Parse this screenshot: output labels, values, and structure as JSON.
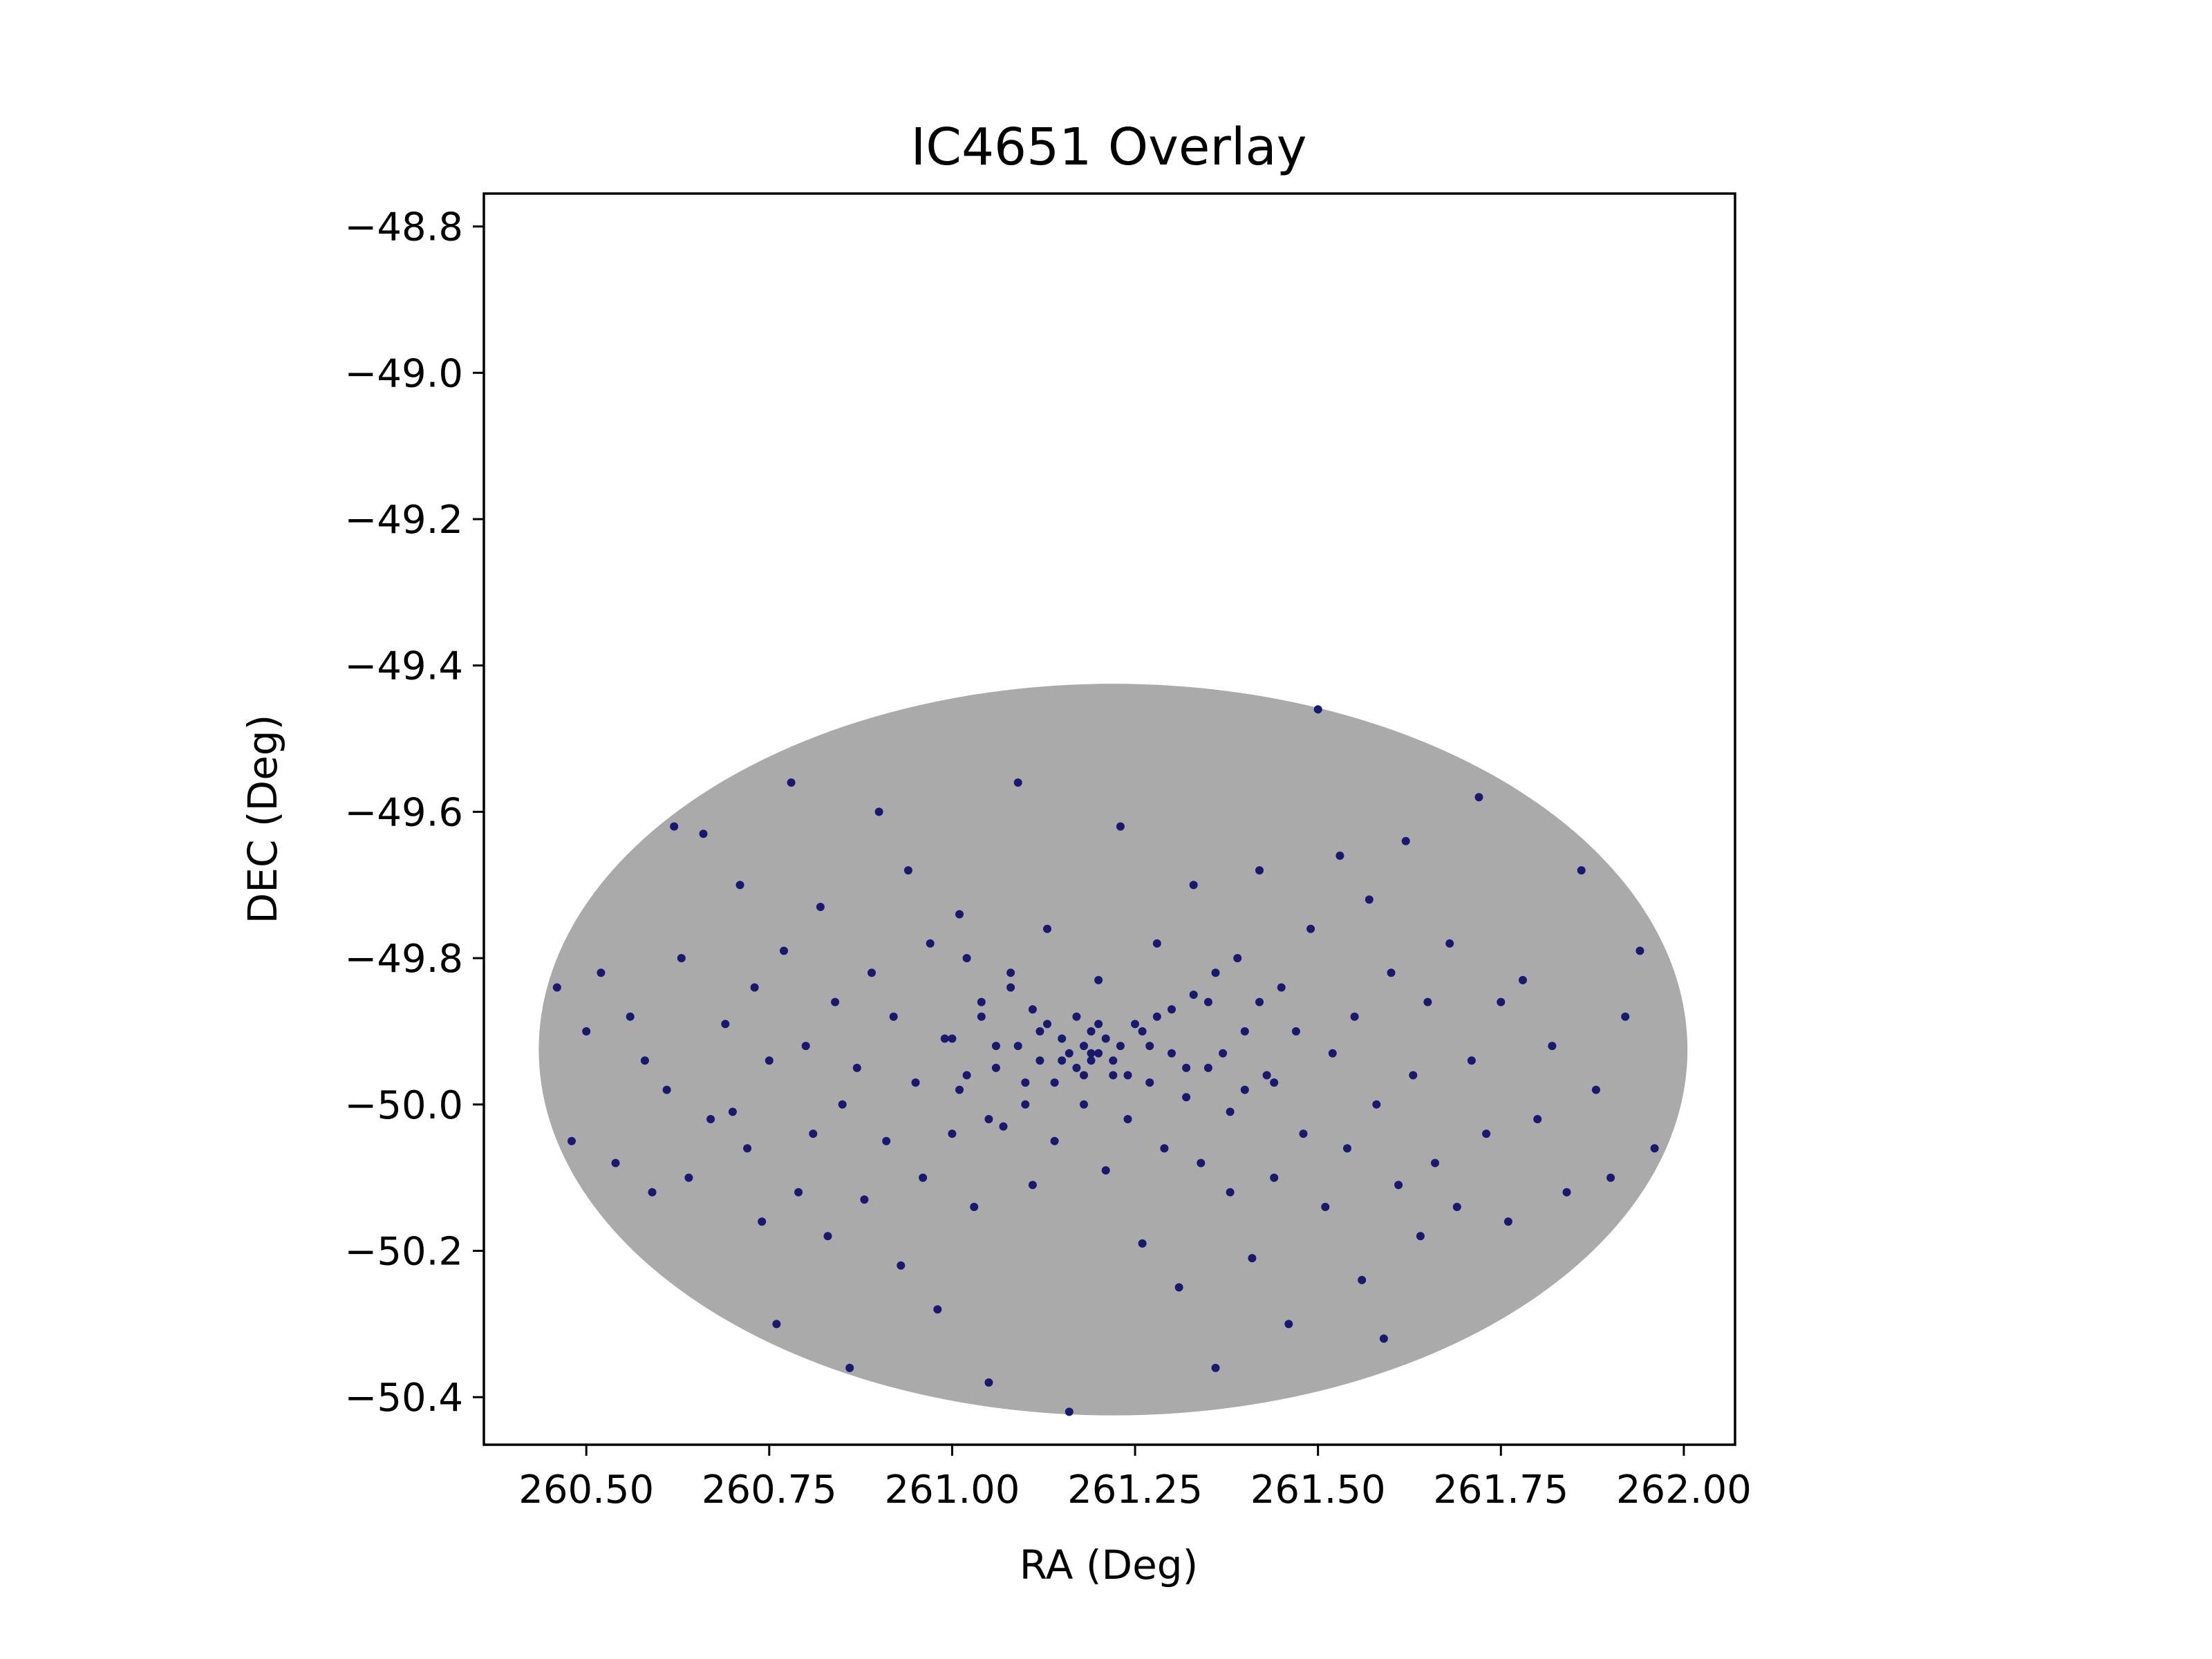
{
  "chart_data": {
    "type": "scatter",
    "title": "IC4651 Overlay",
    "xlabel": "RA (Deg)",
    "ylabel": "DEC (Deg)",
    "xlim": [
      260.36,
      262.07
    ],
    "ylim": [
      -50.465,
      -48.755
    ],
    "xticks": [
      {
        "value": 260.5,
        "label": "260.50"
      },
      {
        "value": 260.75,
        "label": "260.75"
      },
      {
        "value": 261.0,
        "label": "261.00"
      },
      {
        "value": 261.25,
        "label": "261.25"
      },
      {
        "value": 261.5,
        "label": "261.50"
      },
      {
        "value": 261.75,
        "label": "261.75"
      },
      {
        "value": 262.0,
        "label": "262.00"
      }
    ],
    "yticks": [
      {
        "value": -48.8,
        "label": "−48.8"
      },
      {
        "value": -49.0,
        "label": "−49.0"
      },
      {
        "value": -49.2,
        "label": "−49.2"
      },
      {
        "value": -49.4,
        "label": "−49.4"
      },
      {
        "value": -49.6,
        "label": "−49.6"
      },
      {
        "value": -49.8,
        "label": "−49.8"
      },
      {
        "value": -50.0,
        "label": "−50.0"
      },
      {
        "value": -50.2,
        "label": "−50.2"
      },
      {
        "value": -50.4,
        "label": "−50.4"
      }
    ],
    "grid": false,
    "legend": "none",
    "field": {
      "description": "gray elliptical region of sampled positions",
      "center_ra": 261.22,
      "center_dec": -49.925,
      "half_width_ra": 0.785,
      "half_height_dec": 0.5,
      "color": "#aaaaaa"
    },
    "series": [
      {
        "color": "#191970",
        "points": [
          [
            260.46,
            -49.84
          ],
          [
            260.48,
            -50.05
          ],
          [
            260.5,
            -49.9
          ],
          [
            260.52,
            -49.82
          ],
          [
            260.54,
            -50.08
          ],
          [
            260.56,
            -49.88
          ],
          [
            260.58,
            -49.94
          ],
          [
            260.59,
            -50.12
          ],
          [
            260.61,
            -49.98
          ],
          [
            260.62,
            -49.62
          ],
          [
            260.63,
            -49.8
          ],
          [
            260.64,
            -50.1
          ],
          [
            260.66,
            -49.63
          ],
          [
            260.67,
            -50.02
          ],
          [
            260.69,
            -49.89
          ],
          [
            260.7,
            -50.01
          ],
          [
            260.71,
            -49.7
          ],
          [
            260.72,
            -50.06
          ],
          [
            260.73,
            -49.84
          ],
          [
            260.74,
            -50.16
          ],
          [
            260.75,
            -49.94
          ],
          [
            260.76,
            -50.3
          ],
          [
            260.77,
            -49.79
          ],
          [
            260.78,
            -49.56
          ],
          [
            260.79,
            -50.12
          ],
          [
            260.8,
            -49.92
          ],
          [
            260.81,
            -50.04
          ],
          [
            260.82,
            -49.73
          ],
          [
            260.83,
            -50.18
          ],
          [
            260.84,
            -49.86
          ],
          [
            260.85,
            -50.0
          ],
          [
            260.86,
            -50.36
          ],
          [
            260.87,
            -49.95
          ],
          [
            260.88,
            -50.13
          ],
          [
            260.89,
            -49.82
          ],
          [
            260.9,
            -49.6
          ],
          [
            260.91,
            -50.05
          ],
          [
            260.92,
            -49.88
          ],
          [
            260.93,
            -50.22
          ],
          [
            260.94,
            -49.68
          ],
          [
            260.95,
            -49.97
          ],
          [
            260.96,
            -50.1
          ],
          [
            260.97,
            -49.78
          ],
          [
            260.98,
            -50.28
          ],
          [
            260.99,
            -49.91
          ],
          [
            261.0,
            -50.04
          ],
          [
            261.01,
            -49.74
          ],
          [
            261.02,
            -49.96
          ],
          [
            261.03,
            -50.14
          ],
          [
            261.04,
            -49.86
          ],
          [
            261.05,
            -50.38
          ],
          [
            261.06,
            -49.92
          ],
          [
            261.07,
            -50.03
          ],
          [
            261.08,
            -49.82
          ],
          [
            261.09,
            -49.56
          ],
          [
            261.1,
            -49.97
          ],
          [
            261.11,
            -50.11
          ],
          [
            261.12,
            -49.9
          ],
          [
            261.13,
            -49.76
          ],
          [
            261.14,
            -50.05
          ],
          [
            261.15,
            -49.94
          ],
          [
            261.16,
            -50.42
          ],
          [
            261.17,
            -49.88
          ],
          [
            261.18,
            -50.0
          ],
          [
            261.19,
            -49.93
          ],
          [
            261.2,
            -49.83
          ],
          [
            261.21,
            -50.09
          ],
          [
            261.22,
            -49.96
          ],
          [
            261.23,
            -49.62
          ],
          [
            261.24,
            -50.02
          ],
          [
            261.25,
            -49.89
          ],
          [
            261.26,
            -50.19
          ],
          [
            261.27,
            -49.92
          ],
          [
            261.28,
            -49.78
          ],
          [
            261.29,
            -50.06
          ],
          [
            261.3,
            -49.87
          ],
          [
            261.31,
            -50.25
          ],
          [
            261.32,
            -49.95
          ],
          [
            261.33,
            -49.7
          ],
          [
            261.34,
            -50.08
          ],
          [
            261.35,
            -49.86
          ],
          [
            261.36,
            -50.36
          ],
          [
            261.37,
            -49.93
          ],
          [
            261.38,
            -50.12
          ],
          [
            261.39,
            -49.8
          ],
          [
            261.4,
            -49.98
          ],
          [
            261.41,
            -50.21
          ],
          [
            261.42,
            -49.68
          ],
          [
            261.43,
            -49.96
          ],
          [
            261.44,
            -50.1
          ],
          [
            261.45,
            -49.84
          ],
          [
            261.46,
            -50.3
          ],
          [
            261.47,
            -49.9
          ],
          [
            261.48,
            -50.04
          ],
          [
            261.49,
            -49.76
          ],
          [
            261.5,
            -49.46
          ],
          [
            261.51,
            -50.14
          ],
          [
            261.52,
            -49.93
          ],
          [
            261.53,
            -49.66
          ],
          [
            261.54,
            -50.06
          ],
          [
            261.55,
            -49.88
          ],
          [
            261.56,
            -50.24
          ],
          [
            261.57,
            -49.72
          ],
          [
            261.58,
            -50.0
          ],
          [
            261.59,
            -50.32
          ],
          [
            261.6,
            -49.82
          ],
          [
            261.61,
            -50.11
          ],
          [
            261.62,
            -49.64
          ],
          [
            261.63,
            -49.96
          ],
          [
            261.64,
            -50.18
          ],
          [
            261.65,
            -49.86
          ],
          [
            261.66,
            -50.08
          ],
          [
            261.68,
            -49.78
          ],
          [
            261.69,
            -50.14
          ],
          [
            261.71,
            -49.94
          ],
          [
            261.72,
            -49.58
          ],
          [
            261.73,
            -50.04
          ],
          [
            261.75,
            -49.86
          ],
          [
            261.76,
            -50.16
          ],
          [
            261.78,
            -49.83
          ],
          [
            261.8,
            -50.02
          ],
          [
            261.82,
            -49.92
          ],
          [
            261.84,
            -50.12
          ],
          [
            261.86,
            -49.68
          ],
          [
            261.88,
            -49.98
          ],
          [
            261.9,
            -50.1
          ],
          [
            261.92,
            -49.88
          ],
          [
            261.94,
            -49.79
          ],
          [
            261.96,
            -50.06
          ],
          [
            261.18,
            -49.92
          ],
          [
            261.19,
            -49.94
          ],
          [
            261.2,
            -49.93
          ],
          [
            261.17,
            -49.95
          ],
          [
            261.21,
            -49.91
          ],
          [
            261.16,
            -49.93
          ],
          [
            261.22,
            -49.94
          ],
          [
            261.19,
            -49.9
          ],
          [
            261.18,
            -49.96
          ],
          [
            261.2,
            -49.89
          ],
          [
            261.15,
            -49.91
          ],
          [
            261.23,
            -49.92
          ],
          [
            261.14,
            -49.97
          ],
          [
            261.24,
            -49.96
          ],
          [
            261.13,
            -49.89
          ],
          [
            261.26,
            -49.9
          ],
          [
            261.12,
            -49.94
          ],
          [
            261.27,
            -49.97
          ],
          [
            261.11,
            -49.87
          ],
          [
            261.28,
            -49.88
          ],
          [
            261.1,
            -50.0
          ],
          [
            261.3,
            -49.93
          ],
          [
            261.09,
            -49.92
          ],
          [
            261.32,
            -49.99
          ],
          [
            261.08,
            -49.84
          ],
          [
            261.33,
            -49.85
          ],
          [
            261.06,
            -49.95
          ],
          [
            261.35,
            -49.95
          ],
          [
            261.05,
            -50.02
          ],
          [
            261.36,
            -49.82
          ],
          [
            261.04,
            -49.88
          ],
          [
            261.38,
            -50.01
          ],
          [
            261.02,
            -49.8
          ],
          [
            261.4,
            -49.9
          ],
          [
            261.01,
            -49.98
          ],
          [
            261.42,
            -49.86
          ],
          [
            261.0,
            -49.91
          ],
          [
            261.44,
            -49.97
          ]
        ]
      }
    ]
  }
}
